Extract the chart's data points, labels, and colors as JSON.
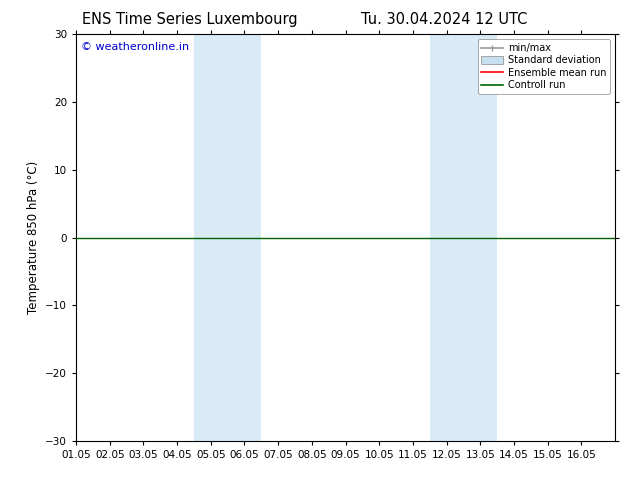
{
  "title_left": "ENS Time Series Luxembourg",
  "title_right": "Tu. 30.04.2024 12 UTC",
  "ylabel": "Temperature 850 hPa (°C)",
  "watermark": "© weatheronline.in",
  "watermark_color": "#0000cc",
  "xlim_start": 0,
  "xlim_end": 16,
  "ylim": [
    -30,
    30
  ],
  "yticks": [
    -30,
    -20,
    -10,
    0,
    10,
    20,
    30
  ],
  "xtick_labels": [
    "01.05",
    "02.05",
    "03.05",
    "04.05",
    "05.05",
    "06.05",
    "07.05",
    "08.05",
    "09.05",
    "10.05",
    "11.05",
    "12.05",
    "13.05",
    "14.05",
    "15.05",
    "16.05"
  ],
  "bg_color": "#ffffff",
  "plot_bg_color": "#ffffff",
  "shaded_bands": [
    {
      "x_start": 3.5,
      "x_end": 5.5,
      "color": "#d8ebf7"
    },
    {
      "x_start": 10.5,
      "x_end": 12.5,
      "color": "#d8ebf7"
    }
  ],
  "horizontal_line_y": 0,
  "horizontal_line_color": "#006400",
  "legend_items": [
    {
      "label": "min/max",
      "color": "#999999",
      "lw": 1.2
    },
    {
      "label": "Standard deviation",
      "color": "#c8dff0",
      "lw": 6
    },
    {
      "label": "Ensemble mean run",
      "color": "#ff0000",
      "lw": 1.2
    },
    {
      "label": "Controll run",
      "color": "#006400",
      "lw": 1.2
    }
  ],
  "tick_font_size": 7.5,
  "label_font_size": 8.5,
  "title_font_size": 10.5
}
